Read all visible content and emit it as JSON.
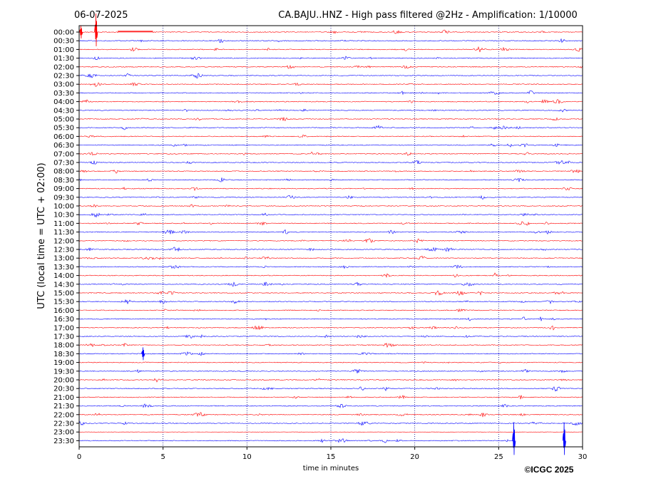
{
  "header": {
    "date": "06-07-2025",
    "title": "CA.BAJU..HNZ - High pass filtered @2Hz - Amplification: 1/10000"
  },
  "copyright": "©ICGC 2025",
  "colors": {
    "even_trace": "#ff0000",
    "odd_trace": "#0000ff",
    "axes": "#000000",
    "grid": "#000080"
  },
  "chart_data": {
    "type": "line",
    "title": "CA.BAJU..HNZ - High pass filtered @2Hz - Amplification: 1/10000",
    "xlabel": "time in minutes",
    "ylabel": "UTC (local time = UTC + 02:00)",
    "xlim": [
      0,
      30
    ],
    "x_ticks": [
      0,
      5,
      10,
      15,
      20,
      25,
      30
    ],
    "grid": "vertical dotted lines at 5-minute intervals",
    "row_labels": [
      "00:00",
      "00:30",
      "01:00",
      "01:30",
      "02:00",
      "02:30",
      "03:00",
      "03:30",
      "04:00",
      "04:30",
      "05:00",
      "05:30",
      "06:00",
      "06:30",
      "07:00",
      "07:30",
      "08:00",
      "08:30",
      "09:00",
      "09:30",
      "10:00",
      "10:30",
      "11:00",
      "11:30",
      "12:00",
      "12:30",
      "13:00",
      "13:30",
      "14:00",
      "14:30",
      "15:00",
      "15:30",
      "16:00",
      "16:30",
      "17:00",
      "17:30",
      "18:00",
      "18:30",
      "19:00",
      "19:30",
      "20:00",
      "20:30",
      "21:00",
      "21:30",
      "22:00",
      "22:30",
      "23:00",
      "23:30"
    ],
    "trace_colors": "alternating red / blue per row",
    "notable_events": [
      {
        "row": "00:00",
        "minute": 0.1,
        "amplitude": "spike"
      },
      {
        "row": "00:00",
        "minute": 1.0,
        "amplitude": "large spike"
      },
      {
        "row": "00:00",
        "from_minute": 2.3,
        "to_minute": 4.4,
        "amplitude": "flat segment"
      },
      {
        "row": "18:30",
        "minute": 3.8,
        "amplitude": "spike"
      },
      {
        "row": "23:30",
        "minute": 25.9,
        "amplitude": "large spike"
      },
      {
        "row": "23:30",
        "minute": 28.9,
        "amplitude": "large spike"
      }
    ]
  }
}
